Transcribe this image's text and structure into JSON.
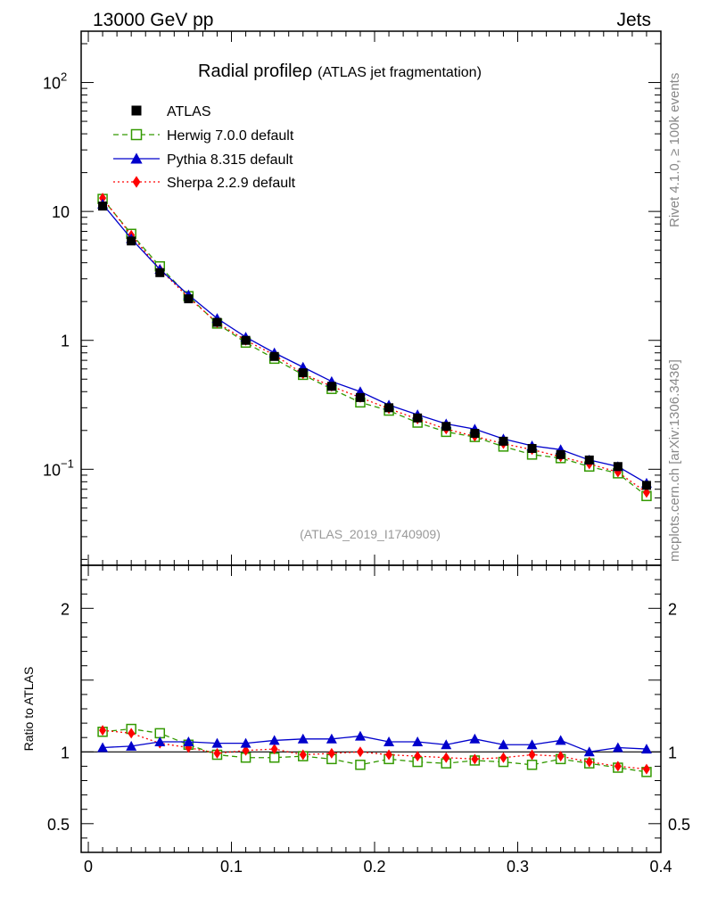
{
  "header": {
    "left": "13000 GeV pp",
    "right": "Jets"
  },
  "side_text": {
    "rivet": "Rivet 4.1.0, ≥ 100k events",
    "mcplots": "mcplots.cern.ch [arXiv:1306.3436]"
  },
  "chart_data": {
    "type": "line",
    "title": "Radial profile",
    "title_symbol": "ρ",
    "title_suffix": "(ATLAS jet fragmentation)",
    "analysis_id": "(ATLAS_2019_I1740909)",
    "x": [
      0.01,
      0.03,
      0.05,
      0.07,
      0.09,
      0.11,
      0.13,
      0.15,
      0.17,
      0.19,
      0.21,
      0.23,
      0.25,
      0.27,
      0.29,
      0.31,
      0.33,
      0.35,
      0.37,
      0.39
    ],
    "xlim": [
      -0.005,
      0.4
    ],
    "main": {
      "yscale": "log",
      "ylim": [
        0.018,
        250
      ],
      "ytick_labels": [
        "10",
        "1"
      ],
      "ytick_power_labels": [
        {
          "base": "10",
          "exp": "2"
        },
        {
          "base": "10",
          "exp": "−1"
        }
      ]
    },
    "ratio": {
      "ylabel": "Ratio to ATLAS",
      "ylim": [
        0.3,
        2.3
      ],
      "ytick_labels": [
        "0.5",
        "1",
        "2"
      ]
    },
    "xtick_labels": [
      "0",
      "0.1",
      "0.2",
      "0.3",
      "0.4"
    ],
    "series": [
      {
        "name": "ATLAS",
        "color": "#000000",
        "marker": "square-filled",
        "line": "none",
        "values": [
          11.0,
          5.9,
          3.35,
          2.1,
          1.38,
          1.0,
          0.75,
          0.56,
          0.44,
          0.36,
          0.3,
          0.25,
          0.215,
          0.19,
          0.165,
          0.145,
          0.13,
          0.118,
          0.105,
          0.075
        ]
      },
      {
        "name": "Herwig 7.0.0 default",
        "color": "#339900",
        "marker": "square-open",
        "line": "dashed",
        "values": [
          12.5,
          6.7,
          3.75,
          2.2,
          1.35,
          0.96,
          0.72,
          0.54,
          0.42,
          0.33,
          0.285,
          0.23,
          0.195,
          0.178,
          0.15,
          0.13,
          0.122,
          0.105,
          0.093,
          0.062
        ],
        "ratio": [
          1.14,
          1.16,
          1.13,
          1.05,
          0.98,
          0.96,
          0.96,
          0.97,
          0.95,
          0.91,
          0.95,
          0.93,
          0.92,
          0.94,
          0.93,
          0.91,
          0.95,
          0.92,
          0.89,
          0.86
        ]
      },
      {
        "name": "Pythia 8.315 default",
        "color": "#0000cc",
        "marker": "triangle-filled",
        "line": "solid",
        "values": [
          11.4,
          6.15,
          3.55,
          2.25,
          1.48,
          1.06,
          0.8,
          0.62,
          0.48,
          0.4,
          0.315,
          0.265,
          0.225,
          0.205,
          0.172,
          0.152,
          0.142,
          0.118,
          0.105,
          0.078
        ],
        "ratio": [
          1.03,
          1.04,
          1.07,
          1.07,
          1.06,
          1.06,
          1.08,
          1.09,
          1.09,
          1.11,
          1.07,
          1.07,
          1.05,
          1.09,
          1.05,
          1.05,
          1.08,
          1.0,
          1.03,
          1.02
        ]
      },
      {
        "name": "Sherpa 2.2.9 default",
        "color": "#ff0000",
        "marker": "diamond-filled",
        "line": "dotted",
        "values": [
          12.7,
          6.55,
          3.55,
          2.15,
          1.37,
          1.0,
          0.77,
          0.55,
          0.44,
          0.36,
          0.295,
          0.245,
          0.205,
          0.18,
          0.158,
          0.142,
          0.125,
          0.11,
          0.095,
          0.066
        ],
        "ratio": [
          1.15,
          1.13,
          1.06,
          1.03,
          0.99,
          1.01,
          1.02,
          0.98,
          0.99,
          1.0,
          0.98,
          0.97,
          0.96,
          0.95,
          0.96,
          0.98,
          0.97,
          0.93,
          0.9,
          0.88
        ]
      }
    ]
  }
}
